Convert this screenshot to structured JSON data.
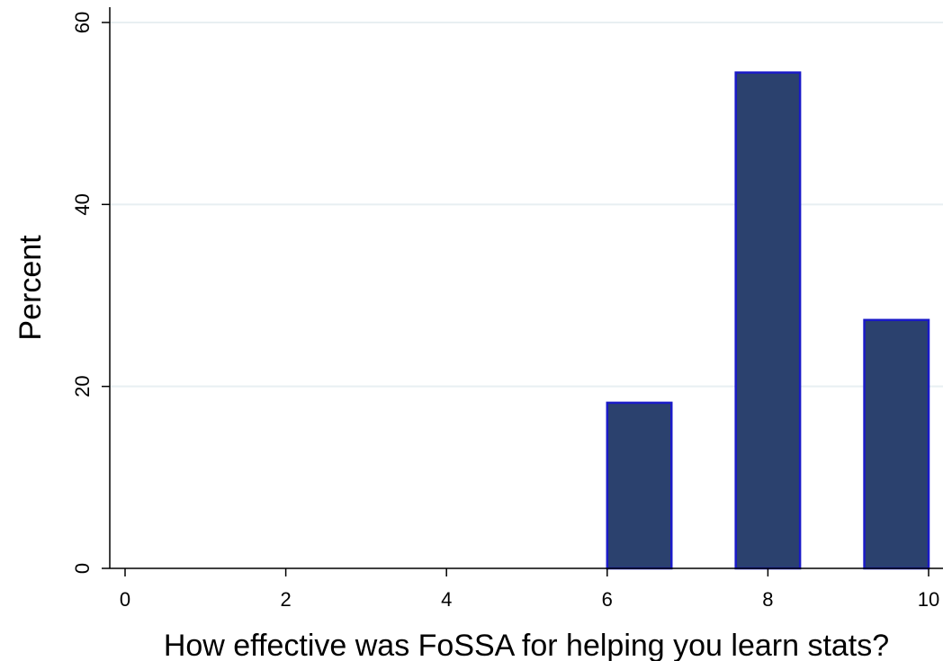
{
  "chart_data": {
    "type": "bar",
    "title": "",
    "xlabel": "How effective was FoSSA for helping you learn stats?",
    "ylabel": "Percent",
    "xlim": [
      0,
      10
    ],
    "ylim": [
      0,
      60
    ],
    "xticks": [
      0,
      2,
      4,
      6,
      8,
      10
    ],
    "yticks": [
      0,
      20,
      40,
      60
    ],
    "grid": "horizontal",
    "bars": [
      {
        "x0": 6.0,
        "x1": 6.8,
        "value": 18.2
      },
      {
        "x0": 7.6,
        "x1": 8.4,
        "value": 54.5
      },
      {
        "x0": 9.2,
        "x1": 10.0,
        "value": 27.3
      }
    ],
    "colors": {
      "bar_fill": "#2b416e",
      "bar_edge": "#1a1ac8",
      "grid": "#e8eff2",
      "axis": "#000000"
    }
  }
}
